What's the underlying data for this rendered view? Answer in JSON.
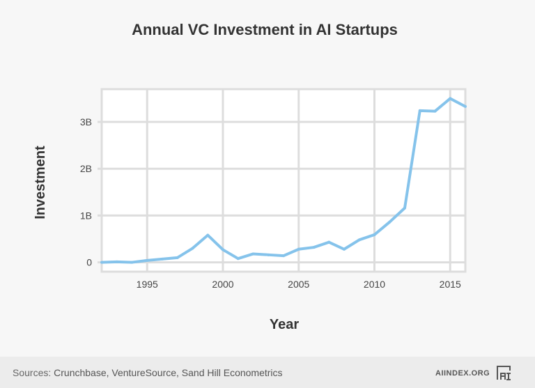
{
  "footer": {
    "sources_label": "Sources:",
    "sources": "Crunchbase, VentureSource, Sand Hill Econometrics",
    "site": "AIINDEX.ORG",
    "logo_text": "AI"
  },
  "chart_data": {
    "type": "line",
    "title": "Annual VC Investment in AI Startups",
    "xlabel": "Year",
    "ylabel": "Investment",
    "xlim": [
      1992,
      2016
    ],
    "ylim": [
      -0.2,
      3.7
    ],
    "xticks": [
      1995,
      2000,
      2005,
      2010,
      2015
    ],
    "xtick_labels": [
      "1995",
      "2000",
      "2005",
      "2010",
      "2015"
    ],
    "yticks": [
      0,
      1,
      2,
      3
    ],
    "ytick_labels": [
      "0",
      "1B",
      "2B",
      "3B"
    ],
    "y_unit": "billions USD",
    "grid": true,
    "line_color": "#85c3eb",
    "x": [
      1992,
      1993,
      1994,
      1995,
      1996,
      1997,
      1998,
      1999,
      2000,
      2001,
      2002,
      2003,
      2004,
      2005,
      2006,
      2007,
      2008,
      2009,
      2010,
      2011,
      2012,
      2013,
      2014,
      2015,
      2016
    ],
    "y": [
      0,
      0.01,
      0,
      0.04,
      0.07,
      0.1,
      0.3,
      0.58,
      0.27,
      0.08,
      0.18,
      0.16,
      0.14,
      0.28,
      0.32,
      0.43,
      0.28,
      0.48,
      0.59,
      0.86,
      1.16,
      3.24,
      3.23,
      3.5,
      3.33
    ]
  }
}
